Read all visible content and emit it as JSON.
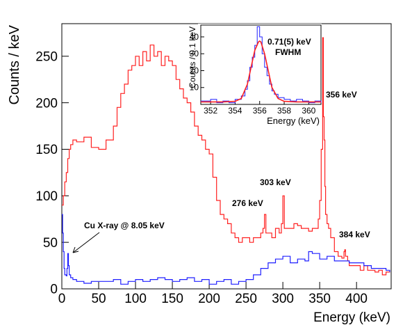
{
  "chart_data": [
    {
      "type": "line",
      "xlabel": "Energy (keV)",
      "ylabel": "Counts / keV",
      "xlim": [
        0,
        447
      ],
      "ylim": [
        0,
        285
      ],
      "x_ticks": [
        0,
        50,
        100,
        150,
        200,
        250,
        300,
        350,
        400
      ],
      "y_ticks": [
        0,
        50,
        100,
        150,
        200,
        250
      ],
      "x_tick_labels": [
        "0",
        "50",
        "100",
        "150",
        "200",
        "250",
        "300",
        "350",
        "400"
      ],
      "y_tick_labels": [
        "0",
        "50",
        "100",
        "150",
        "200",
        "250"
      ],
      "grid": false,
      "series": [
        {
          "color": "#ff2020",
          "x": [
            0,
            2,
            4,
            6,
            8,
            10,
            12,
            15,
            20,
            30,
            40,
            50,
            60,
            70,
            75,
            80,
            85,
            90,
            95,
            100,
            105,
            110,
            115,
            120,
            125,
            130,
            135,
            140,
            145,
            150,
            155,
            160,
            165,
            170,
            175,
            180,
            185,
            190,
            195,
            200,
            205,
            210,
            215,
            220,
            225,
            230,
            235,
            240,
            245,
            250,
            255,
            260,
            265,
            270,
            273,
            275,
            277,
            280,
            285,
            290,
            295,
            298,
            300,
            302,
            305,
            310,
            315,
            320,
            325,
            330,
            335,
            340,
            345,
            348,
            350,
            352,
            354,
            355,
            356,
            357,
            358,
            360,
            362,
            365,
            370,
            375,
            380,
            383,
            384,
            385,
            388,
            390,
            395,
            400,
            405,
            410,
            415,
            420,
            425,
            430,
            435,
            440,
            445
          ],
          "y": [
            90,
            100,
            115,
            125,
            140,
            150,
            155,
            160,
            158,
            163,
            152,
            150,
            160,
            175,
            195,
            210,
            220,
            235,
            240,
            250,
            240,
            255,
            245,
            262,
            250,
            255,
            240,
            250,
            245,
            240,
            225,
            215,
            205,
            200,
            190,
            175,
            165,
            160,
            150,
            145,
            120,
            95,
            80,
            75,
            70,
            60,
            55,
            50,
            55,
            55,
            50,
            55,
            55,
            60,
            65,
            80,
            60,
            60,
            55,
            65,
            60,
            70,
            100,
            65,
            65,
            65,
            70,
            68,
            65,
            65,
            62,
            65,
            65,
            75,
            95,
            150,
            270,
            185,
            160,
            110,
            80,
            70,
            65,
            55,
            40,
            35,
            33,
            40,
            42,
            35,
            30,
            25,
            25,
            25,
            20,
            25,
            20,
            20,
            18,
            20,
            15,
            18,
            20
          ]
        },
        {
          "color": "#2020ff",
          "x": [
            0,
            1,
            2,
            3,
            4,
            6,
            7,
            8,
            9,
            10,
            12,
            15,
            20,
            30,
            40,
            50,
            60,
            70,
            80,
            90,
            100,
            110,
            120,
            130,
            140,
            150,
            160,
            170,
            180,
            190,
            200,
            210,
            220,
            230,
            240,
            250,
            260,
            270,
            280,
            290,
            300,
            310,
            320,
            330,
            335,
            340,
            350,
            360,
            370,
            380,
            390,
            400,
            410,
            420,
            430,
            440,
            445
          ],
          "y": [
            80,
            60,
            40,
            22,
            15,
            14,
            22,
            38,
            25,
            15,
            12,
            10,
            8,
            6,
            8,
            8,
            8,
            10,
            5,
            8,
            10,
            8,
            10,
            12,
            10,
            8,
            10,
            12,
            8,
            10,
            5,
            8,
            10,
            5,
            8,
            10,
            15,
            22,
            28,
            32,
            35,
            28,
            32,
            30,
            40,
            38,
            32,
            35,
            30,
            30,
            28,
            28,
            25,
            22,
            22,
            20,
            18
          ]
        }
      ],
      "annotations": [
        "356 keV",
        "303 keV",
        "276 keV",
        "384 keV",
        "Cu X-ray @ 8.05 keV"
      ]
    },
    {
      "type": "line",
      "xlabel": "Energy (keV)",
      "ylabel": "Counts / 0.1 keV",
      "xlim": [
        351.2,
        361
      ],
      "ylim": [
        0,
        47
      ],
      "x_ticks": [
        352,
        354,
        356,
        358,
        360
      ],
      "y_ticks": [
        10,
        20,
        30,
        40
      ],
      "x_tick_labels": [
        "352",
        "354",
        "356",
        "358",
        "360"
      ],
      "y_tick_labels": [
        "10",
        "20",
        "30",
        "40"
      ],
      "series": [
        {
          "color": "#2020ff",
          "x": [
            351.2,
            352,
            352.5,
            353,
            353.5,
            354,
            354.5,
            354.8,
            355,
            355.2,
            355.4,
            355.6,
            355.8,
            356,
            356.2,
            356.4,
            356.6,
            356.8,
            357,
            357.2,
            357.5,
            358,
            358.5,
            359,
            359.5,
            360,
            360.5,
            361
          ],
          "y": [
            2,
            3,
            1,
            2,
            1,
            3,
            5,
            9,
            14,
            22,
            28,
            35,
            46,
            40,
            30,
            22,
            17,
            12,
            8,
            6,
            4,
            3,
            2,
            3,
            2,
            1,
            2,
            1
          ]
        },
        {
          "color": "#ff2020",
          "x": [
            351.2,
            352,
            353,
            354,
            354.5,
            355,
            355.3,
            355.6,
            355.9,
            356,
            356.1,
            356.4,
            356.7,
            357,
            357.5,
            358,
            359,
            360,
            361
          ],
          "y": [
            1.5,
            1.5,
            1.5,
            1.8,
            3.5,
            12,
            22,
            32,
            37,
            37.5,
            37,
            30,
            20,
            10,
            3.5,
            1.8,
            1.5,
            1.5,
            1.5
          ]
        }
      ],
      "annotations": [
        "0.71(5) keV",
        "FWHM"
      ]
    }
  ]
}
